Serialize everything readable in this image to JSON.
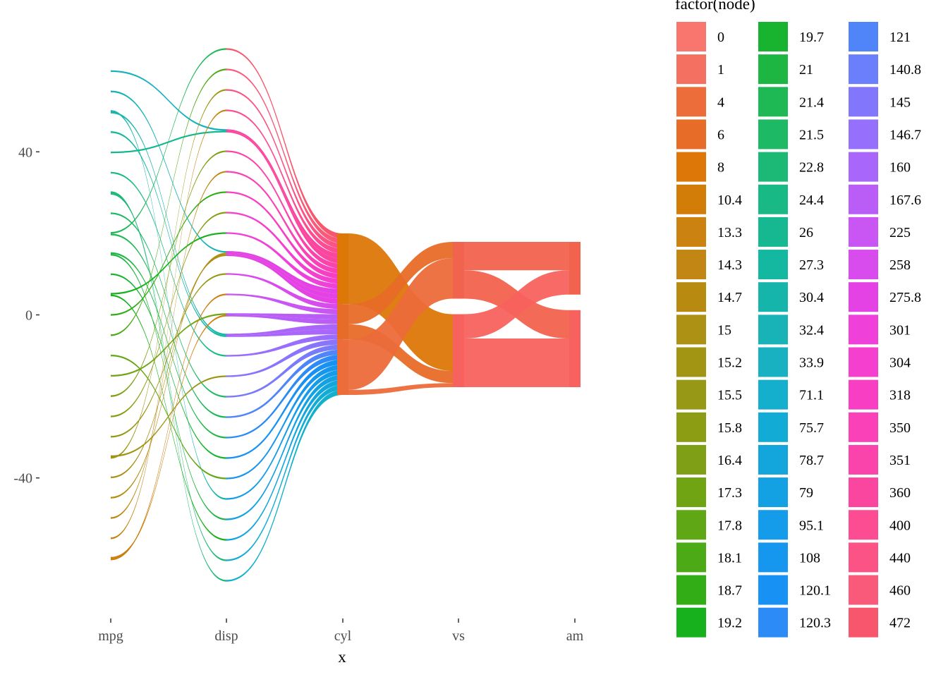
{
  "chart_data": {
    "type": "sankey",
    "xlabel": "x",
    "ylabel": "",
    "x_categories": [
      "mpg",
      "disp",
      "cyl",
      "vs",
      "am"
    ],
    "y_ticks": [
      40,
      0,
      -40
    ],
    "y_tick_labels": [
      "40",
      "0",
      "-40"
    ],
    "ylim": [
      -70,
      70
    ],
    "legend_title": "factor(node)",
    "legend_position": "right",
    "grid": false,
    "stages": [
      {
        "name": "mpg",
        "nodes": [
          {
            "label": "33.9",
            "count": 1,
            "color": "#17B1C1"
          },
          {
            "label": "32.4",
            "count": 1,
            "color": "#17B3B6"
          },
          {
            "label": "30.4",
            "count": 2,
            "color": "#15B5AB"
          },
          {
            "label": "27.3",
            "count": 1,
            "color": "#14B79F"
          },
          {
            "label": "26",
            "count": 1,
            "color": "#16B892"
          },
          {
            "label": "24.4",
            "count": 1,
            "color": "#18B984"
          },
          {
            "label": "22.8",
            "count": 2,
            "color": "#1BB975"
          },
          {
            "label": "21.5",
            "count": 1,
            "color": "#1DB965"
          },
          {
            "label": "21.4",
            "count": 2,
            "color": "#1EB855"
          },
          {
            "label": "21",
            "count": 2,
            "color": "#1DB643"
          },
          {
            "label": "19.7",
            "count": 1,
            "color": "#18B42F"
          },
          {
            "label": "19.2",
            "count": 2,
            "color": "#16B11C"
          },
          {
            "label": "18.7",
            "count": 1,
            "color": "#34AD18"
          },
          {
            "label": "18.1",
            "count": 1,
            "color": "#4DAA17"
          },
          {
            "label": "17.8",
            "count": 1,
            "color": "#60A716"
          },
          {
            "label": "17.3",
            "count": 1,
            "color": "#70A415"
          },
          {
            "label": "16.4",
            "count": 1,
            "color": "#7EA014"
          },
          {
            "label": "15.8",
            "count": 1,
            "color": "#8A9C13"
          },
          {
            "label": "15.5",
            "count": 1,
            "color": "#959914"
          },
          {
            "label": "15.2",
            "count": 2,
            "color": "#9F9515"
          },
          {
            "label": "15",
            "count": 1,
            "color": "#A99117"
          },
          {
            "label": "14.7",
            "count": 1,
            "color": "#B28D0E"
          },
          {
            "label": "14.3",
            "count": 1,
            "color": "#BC8810"
          },
          {
            "label": "13.3",
            "count": 1,
            "color": "#C48311"
          },
          {
            "label": "10.4",
            "count": 2,
            "color": "#CD7E0D"
          }
        ]
      },
      {
        "name": "disp",
        "nodes": [
          {
            "label": "472",
            "count": 1,
            "color": "#F8566D"
          },
          {
            "label": "460",
            "count": 1,
            "color": "#FA5A79"
          },
          {
            "label": "440",
            "count": 1,
            "color": "#FB5385"
          },
          {
            "label": "400",
            "count": 1,
            "color": "#FC4C92"
          },
          {
            "label": "360",
            "count": 2,
            "color": "#FB469F"
          },
          {
            "label": "351",
            "count": 1,
            "color": "#FB44AB"
          },
          {
            "label": "350",
            "count": 1,
            "color": "#FA41B7"
          },
          {
            "label": "318",
            "count": 1,
            "color": "#F83FC3"
          },
          {
            "label": "304",
            "count": 1,
            "color": "#F43FCF"
          },
          {
            "label": "301",
            "count": 1,
            "color": "#EF40DA"
          },
          {
            "label": "275.8",
            "count": 3,
            "color": "#E442E4"
          },
          {
            "label": "258",
            "count": 1,
            "color": "#D84BEC"
          },
          {
            "label": "225",
            "count": 1,
            "color": "#C955F2"
          },
          {
            "label": "167.6",
            "count": 2,
            "color": "#BA5DF7"
          },
          {
            "label": "160",
            "count": 2,
            "color": "#AA66FA"
          },
          {
            "label": "146.7",
            "count": 1,
            "color": "#9A6EFC"
          },
          {
            "label": "145",
            "count": 1,
            "color": "#8A74FC"
          },
          {
            "label": "140.8",
            "count": 1,
            "color": "#7A7BFB"
          },
          {
            "label": "121",
            "count": 1,
            "color": "#4F85F9"
          },
          {
            "label": "120.3",
            "count": 1,
            "color": "#2D8BF7"
          },
          {
            "label": "120.1",
            "count": 1,
            "color": "#1891F5"
          },
          {
            "label": "108",
            "count": 1,
            "color": "#1697EF"
          },
          {
            "label": "95.1",
            "count": 1,
            "color": "#149CEA"
          },
          {
            "label": "79",
            "count": 1,
            "color": "#13A1E4"
          },
          {
            "label": "78.7",
            "count": 1,
            "color": "#13A6DD"
          },
          {
            "label": "75.7",
            "count": 1,
            "color": "#12ABD6"
          },
          {
            "label": "71.1",
            "count": 1,
            "color": "#14AFCD"
          }
        ]
      },
      {
        "name": "cyl",
        "nodes": [
          {
            "label": "8",
            "count": 14,
            "color": "#DD7707"
          },
          {
            "label": "6",
            "count": 7,
            "color": "#E76C27"
          },
          {
            "label": "4",
            "count": 11,
            "color": "#EC6C3A"
          }
        ]
      },
      {
        "name": "vs",
        "nodes": [
          {
            "label": "1",
            "count": 14,
            "color": "#F2634E"
          },
          {
            "label": "0",
            "count": 18,
            "color": "#F7625E"
          }
        ]
      },
      {
        "name": "am",
        "nodes": [
          {
            "label": "1",
            "count": 13,
            "color": "#F2634E"
          },
          {
            "label": "0",
            "count": 19,
            "color": "#F7625E"
          }
        ]
      }
    ],
    "cross_flows": [
      {
        "from_stage": 2,
        "from_node": "8",
        "to_node": "0",
        "count": 14
      },
      {
        "from_stage": 2,
        "from_node": "6",
        "to_node": "1",
        "count": 4
      },
      {
        "from_stage": 2,
        "from_node": "6",
        "to_node": "0",
        "count": 3
      },
      {
        "from_stage": 2,
        "from_node": "4",
        "to_node": "1",
        "count": 10
      },
      {
        "from_stage": 2,
        "from_node": "4",
        "to_node": "0",
        "count": 1
      },
      {
        "from_stage": 3,
        "from_node": "1",
        "to_node": "1",
        "count": 7
      },
      {
        "from_stage": 3,
        "from_node": "1",
        "to_node": "0",
        "count": 7
      },
      {
        "from_stage": 3,
        "from_node": "0",
        "to_node": "1",
        "count": 6
      },
      {
        "from_stage": 3,
        "from_node": "0",
        "to_node": "0",
        "count": 12
      }
    ],
    "legend": [
      {
        "label": "0",
        "color": "#F8766D"
      },
      {
        "label": "1",
        "color": "#F47061"
      },
      {
        "label": "4",
        "color": "#EC6C3A"
      },
      {
        "label": "6",
        "color": "#E76C27"
      },
      {
        "label": "8",
        "color": "#DD7707"
      },
      {
        "label": "10.4",
        "color": "#D27D07"
      },
      {
        "label": "13.3",
        "color": "#CB8210"
      },
      {
        "label": "14.3",
        "color": "#C18613"
      },
      {
        "label": "14.7",
        "color": "#B88A10"
      },
      {
        "label": "15",
        "color": "#AC9114"
      },
      {
        "label": "15.2",
        "color": "#A29513"
      },
      {
        "label": "15.5",
        "color": "#969816"
      },
      {
        "label": "15.8",
        "color": "#8C9C13"
      },
      {
        "label": "16.4",
        "color": "#7FA016"
      },
      {
        "label": "17.3",
        "color": "#71A412"
      },
      {
        "label": "17.8",
        "color": "#60A716"
      },
      {
        "label": "18.1",
        "color": "#4DAA17"
      },
      {
        "label": "18.7",
        "color": "#33AD16"
      },
      {
        "label": "19.2",
        "color": "#16B11C"
      },
      {
        "label": "19.7",
        "color": "#18B42F"
      },
      {
        "label": "21",
        "color": "#1DB643"
      },
      {
        "label": "21.4",
        "color": "#1EB855"
      },
      {
        "label": "21.5",
        "color": "#1DB965"
      },
      {
        "label": "22.8",
        "color": "#1BB975"
      },
      {
        "label": "24.4",
        "color": "#18B984"
      },
      {
        "label": "26",
        "color": "#16B892"
      },
      {
        "label": "27.3",
        "color": "#14B79F"
      },
      {
        "label": "30.4",
        "color": "#15B5AB"
      },
      {
        "label": "32.4",
        "color": "#17B3B6"
      },
      {
        "label": "33.9",
        "color": "#17B1C1"
      },
      {
        "label": "71.1",
        "color": "#14AFCD"
      },
      {
        "label": "75.7",
        "color": "#12ABD6"
      },
      {
        "label": "78.7",
        "color": "#13A6DD"
      },
      {
        "label": "79",
        "color": "#13A1E4"
      },
      {
        "label": "95.1",
        "color": "#149CEA"
      },
      {
        "label": "108",
        "color": "#1697EF"
      },
      {
        "label": "120.1",
        "color": "#1891F5"
      },
      {
        "label": "120.3",
        "color": "#2D8BF7"
      },
      {
        "label": "121",
        "color": "#4F85F9"
      },
      {
        "label": "140.8",
        "color": "#6B7EFB"
      },
      {
        "label": "145",
        "color": "#8277FC"
      },
      {
        "label": "146.7",
        "color": "#966FFC"
      },
      {
        "label": "160",
        "color": "#A867FA"
      },
      {
        "label": "167.6",
        "color": "#BA5DF7"
      },
      {
        "label": "225",
        "color": "#C955F2"
      },
      {
        "label": "258",
        "color": "#D84BEC"
      },
      {
        "label": "275.8",
        "color": "#E442E4"
      },
      {
        "label": "301",
        "color": "#EF40DA"
      },
      {
        "label": "304",
        "color": "#F43FCF"
      },
      {
        "label": "318",
        "color": "#F83FC3"
      },
      {
        "label": "350",
        "color": "#FA41B7"
      },
      {
        "label": "351",
        "color": "#FB44AB"
      },
      {
        "label": "360",
        "color": "#FB469F"
      },
      {
        "label": "400",
        "color": "#FC4C92"
      },
      {
        "label": "440",
        "color": "#FB5385"
      },
      {
        "label": "460",
        "color": "#FA5A79"
      },
      {
        "label": "472",
        "color": "#F8566D"
      }
    ]
  }
}
